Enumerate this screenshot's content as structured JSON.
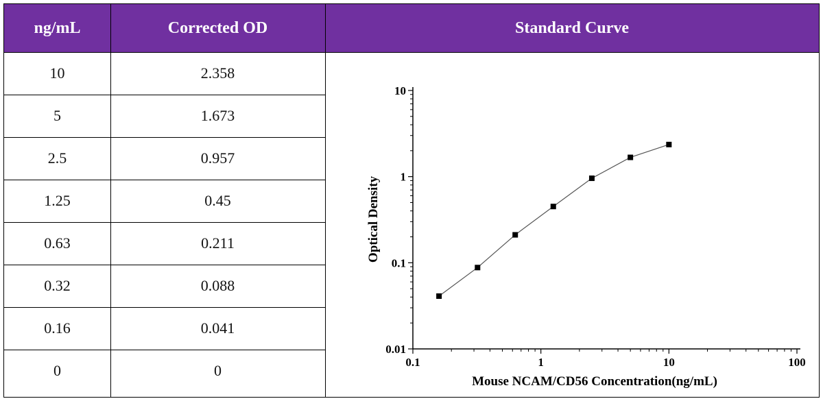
{
  "table": {
    "headers": [
      "ng/mL",
      "Corrected OD"
    ],
    "rows": [
      [
        "10",
        "2.358"
      ],
      [
        "5",
        "1.673"
      ],
      [
        "2.5",
        "0.957"
      ],
      [
        "1.25",
        "0.45"
      ],
      [
        "0.63",
        "0.211"
      ],
      [
        "0.32",
        "0.088"
      ],
      [
        "0.16",
        "0.041"
      ],
      [
        "0",
        "0"
      ]
    ]
  },
  "chart_title": "Standard Curve",
  "colors": {
    "header_bg": "#7030a0",
    "header_text": "#ffffff"
  },
  "chart_data": {
    "type": "line",
    "xlabel": "Mouse NCAM/CD56 Concentration(ng/mL)",
    "ylabel": "Optical Density",
    "x_scale": "log",
    "y_scale": "log",
    "xlim": [
      0.1,
      100
    ],
    "ylim": [
      0.01,
      10
    ],
    "x_ticks": [
      "0.1",
      "1",
      "10",
      "100"
    ],
    "y_ticks": [
      "0.01",
      "0.1",
      "1",
      "10"
    ],
    "grid": false,
    "marker": "square",
    "series": [
      {
        "x": [
          0.16,
          0.32,
          0.63,
          1.25,
          2.5,
          5,
          10
        ],
        "y": [
          0.041,
          0.088,
          0.211,
          0.45,
          0.957,
          1.673,
          2.358
        ]
      }
    ]
  }
}
